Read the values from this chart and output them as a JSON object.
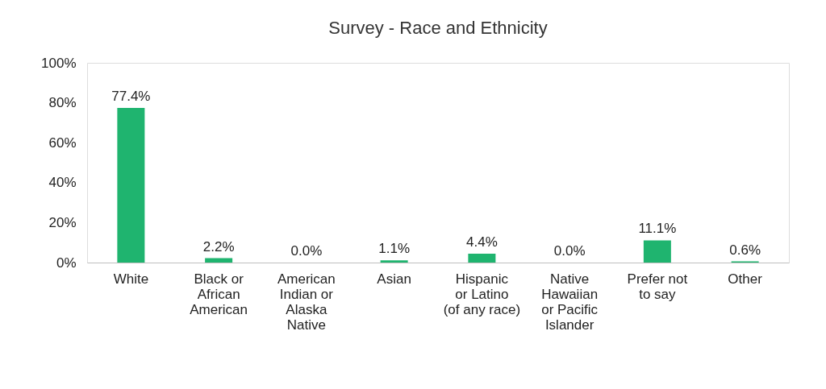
{
  "chart_data": {
    "type": "bar",
    "title": "Survey - Race and Ethnicity",
    "categories": [
      "White",
      "Black or\nAfrican\nAmerican",
      "American\nIndian or\nAlaska\nNative",
      "Asian",
      "Hispanic\nor Latino\n(of any race)",
      "Native\nHawaiian\nor Pacific\nIslander",
      "Prefer not\nto say",
      "Other"
    ],
    "values": [
      77.4,
      2.2,
      0.0,
      1.1,
      4.4,
      0.0,
      11.1,
      0.6
    ],
    "value_labels": [
      "77.4%",
      "2.2%",
      "0.0%",
      "1.1%",
      "4.4%",
      "0.0%",
      "11.1%",
      "0.6%"
    ],
    "color": "#1fb46f",
    "ylim": [
      0,
      100
    ],
    "yticks": [
      {
        "value": 0,
        "label": "0%"
      },
      {
        "value": 20,
        "label": "20%"
      },
      {
        "value": 40,
        "label": "40%"
      },
      {
        "value": 60,
        "label": "60%"
      },
      {
        "value": 80,
        "label": "80%"
      },
      {
        "value": 100,
        "label": "100%"
      }
    ],
    "grid": false
  }
}
